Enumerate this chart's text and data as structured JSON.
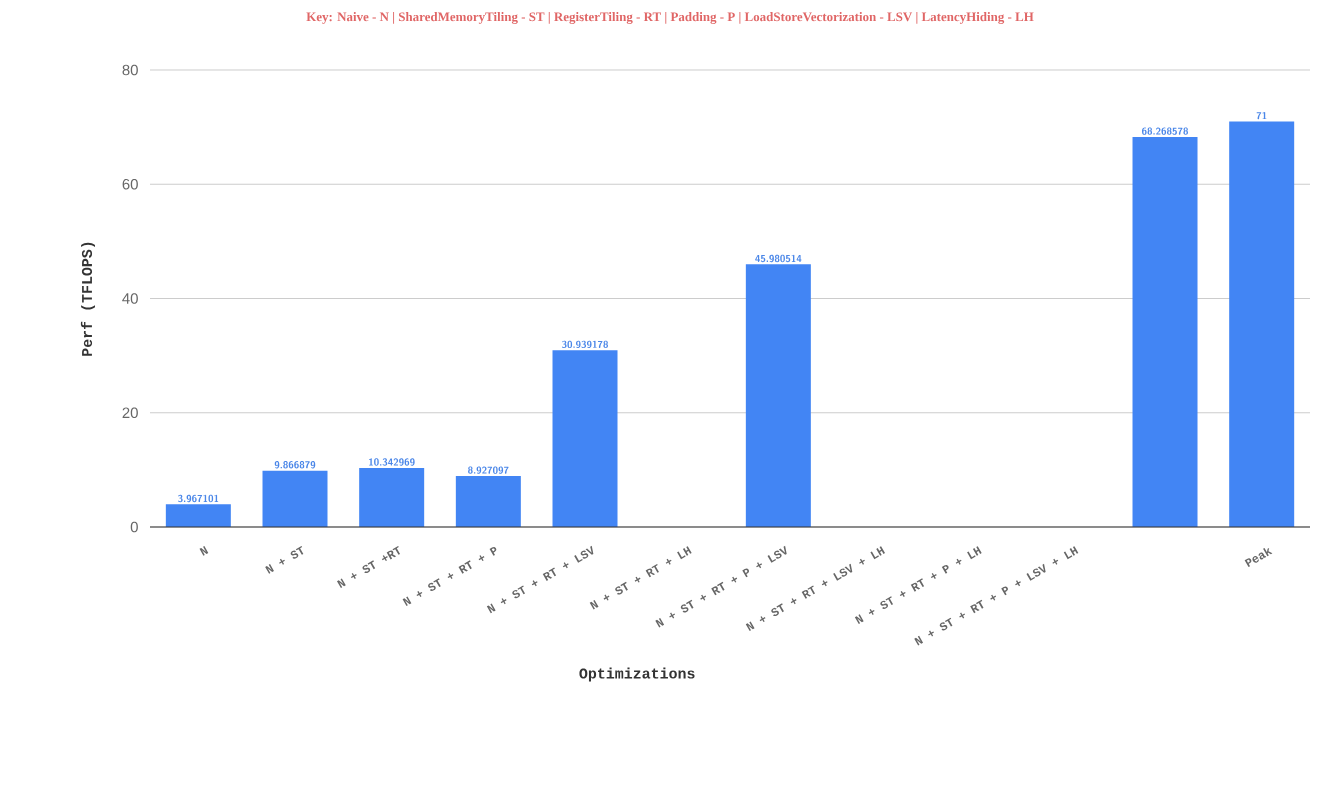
{
  "chart_data": {
    "type": "bar",
    "title": "Key: Naive - N | SharedMemoryTiling - ST | RegisterTiling - RT | Padding - P | LoadStoreVectorization - LSV | LatencyHiding - LH",
    "xlabel": "Optimizations",
    "ylabel": "Perf (TFLOPS)",
    "categories": [
      "N",
      "N + ST",
      "N + ST +RT",
      "N + ST + RT + P",
      "N + ST + RT + LSV",
      "N + ST + RT + LH",
      "N + ST + RT + P + LSV",
      "N + ST + RT + LSV + LH",
      "N + ST + RT + P + LH",
      "N + ST + RT + P + LSV + LH",
      null,
      "Peak"
    ],
    "values": [
      3.967101,
      9.866879,
      10.342969,
      8.927097,
      30.939178,
      null,
      45.980514,
      null,
      null,
      null,
      68.268578,
      71
    ],
    "color": "#4285f4",
    "data_labels": true,
    "grid": "y",
    "ylim": [
      0,
      80
    ],
    "yticks": [
      0,
      20,
      40,
      60,
      80
    ]
  }
}
